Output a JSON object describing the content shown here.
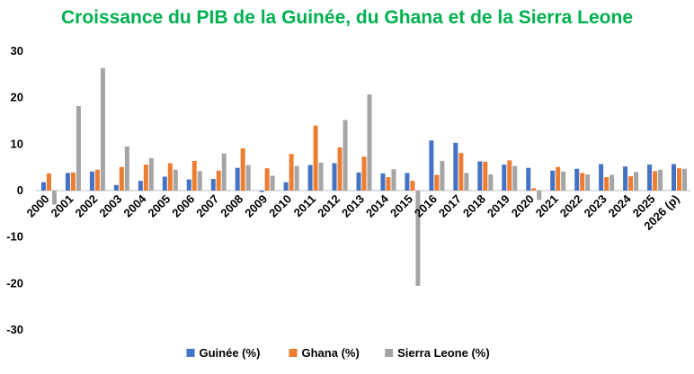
{
  "chart_data": {
    "type": "bar",
    "title": "Croissance du PIB de la Guinée, du Ghana et de la Sierra Leone",
    "title_color": "#00b050",
    "xlabel": "",
    "ylabel": "",
    "ylim": [
      -30,
      30
    ],
    "yticks": [
      30,
      20,
      10,
      0,
      -10,
      -20,
      -30
    ],
    "grid": false,
    "legend_position": "bottom",
    "categories": [
      "2000",
      "2001",
      "2002",
      "2003",
      "2004",
      "2005",
      "2006",
      "2007",
      "2008",
      "2009",
      "2010",
      "2011",
      "2012",
      "2013",
      "2014",
      "2015",
      "2016",
      "2017",
      "2018",
      "2019",
      "2020",
      "2021",
      "2022",
      "2023",
      "2024",
      "2025",
      "2026 (p)"
    ],
    "series": [
      {
        "name": "Guinée (%)",
        "color": "#4472c4",
        "values": [
          1.8,
          3.8,
          4.1,
          1.2,
          2.1,
          3.0,
          2.4,
          2.5,
          4.9,
          -0.3,
          1.8,
          5.5,
          5.9,
          3.9,
          3.7,
          3.8,
          10.8,
          10.3,
          6.3,
          5.6,
          4.9,
          4.3,
          4.7,
          5.7,
          5.2,
          5.6,
          5.7
        ]
      },
      {
        "name": "Ghana (%)",
        "color": "#ed7d31",
        "values": [
          3.7,
          3.9,
          4.5,
          5.1,
          5.6,
          5.9,
          6.4,
          4.3,
          9.1,
          4.8,
          7.9,
          14.0,
          9.3,
          7.3,
          2.9,
          2.1,
          3.4,
          8.1,
          6.2,
          6.5,
          0.5,
          5.1,
          3.8,
          2.9,
          3.1,
          4.2,
          4.8
        ]
      },
      {
        "name": "Sierra Leone (%)",
        "color": "#a5a5a5",
        "values": [
          -3.0,
          18.2,
          26.4,
          9.5,
          7.0,
          4.5,
          4.2,
          8.0,
          5.5,
          3.2,
          5.3,
          6.0,
          15.2,
          20.7,
          4.6,
          -20.5,
          6.4,
          3.8,
          3.5,
          5.3,
          -2.0,
          4.1,
          3.5,
          3.4,
          4.0,
          4.5,
          4.7
        ]
      }
    ]
  }
}
